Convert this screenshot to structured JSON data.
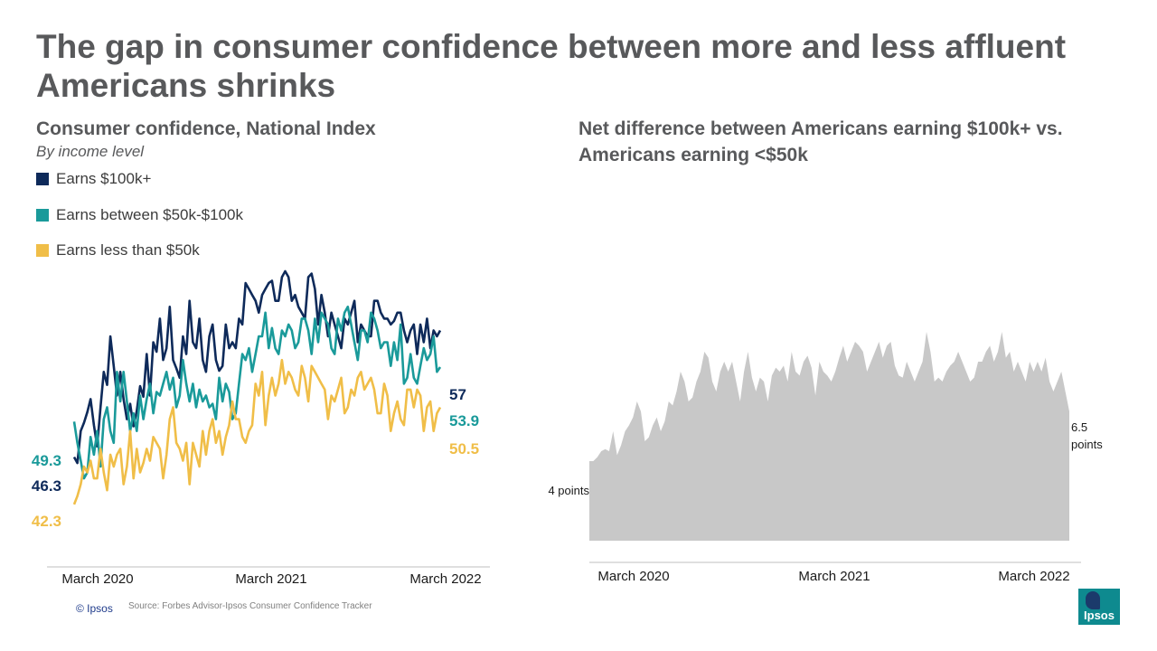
{
  "title": "The gap in consumer confidence between more and less affluent Americans shrinks",
  "left_subtitle": "Consumer confidence, National Index",
  "left_byline": "By income level",
  "right_subtitle": "Net difference between Americans earning $100k+ vs. Americans earning <$50k",
  "footer": {
    "copyright": "© Ipsos",
    "source": "Source: Forbes Advisor-Ipsos Consumer Confidence Tracker"
  },
  "logo_text": "Ipsos",
  "chart_data": [
    {
      "type": "line",
      "title": "Consumer confidence, National Index",
      "subtitle": "By income level",
      "x_labels": [
        "March 2020",
        "March 2021",
        "March 2022"
      ],
      "ylim": [
        40,
        62
      ],
      "grid": false,
      "legend": "top-left",
      "series": [
        {
          "name": "Earns $100k+",
          "color": "#0e2a5a",
          "start_label": "46.3",
          "end_label": "57",
          "values": [
            46.3,
            45.8,
            48.5,
            49.2,
            50.1,
            51.2,
            49.0,
            47.2,
            50.5,
            53.5,
            52.4,
            56.5,
            54.0,
            51.5,
            53.5,
            51.2,
            49.5,
            50.8,
            48.9,
            50.2,
            52.3,
            51.4,
            55.0,
            51.5,
            56.0,
            55.2,
            58.0,
            54.5,
            55.5,
            59.0,
            54.5,
            53.8,
            53.0,
            56.5,
            55.0,
            59.5,
            56.0,
            55.5,
            58.0,
            54.5,
            53.5,
            56.5,
            57.5,
            54.5,
            53.6,
            54.0,
            57.5,
            55.5,
            56.0,
            55.5,
            58.0,
            57.5,
            61.0,
            60.5,
            60.0,
            59.5,
            58.5,
            60.0,
            60.5,
            61.0,
            61.2,
            59.5,
            59.5,
            61.5,
            62.0,
            61.5,
            59.5,
            60.0,
            59.0,
            58.5,
            58.0,
            61.5,
            61.8,
            60.5,
            57.5,
            60.0,
            58.5,
            56.5,
            58.5,
            57.5,
            56.5,
            55.5,
            58.0,
            57.5,
            58.5,
            59.5,
            56.0,
            57.5,
            57.0,
            56.5,
            56.5,
            59.5,
            59.5,
            58.5,
            58.0,
            58.0,
            57.5,
            57.8,
            58.5,
            58.5,
            57.0,
            56.0,
            57.0,
            57.5,
            55.0,
            57.5,
            56.0,
            58.0,
            55.5,
            57.0,
            56.5,
            57.0
          ]
        },
        {
          "name": "Earns between $50k-$100k",
          "color": "#1a9a9a",
          "start_label": "49.3",
          "end_label": "53.9",
          "values": [
            49.3,
            47.5,
            46.0,
            44.5,
            45.0,
            48.0,
            46.5,
            48.5,
            45.5,
            49.5,
            50.5,
            48.5,
            47.5,
            53.5,
            51.0,
            53.5,
            51.0,
            48.5,
            50.0,
            48.5,
            51.5,
            49.5,
            51.2,
            52.5,
            50.0,
            51.8,
            51.5,
            52.5,
            53.5,
            52.0,
            53.0,
            50.5,
            51.5,
            54.5,
            52.5,
            51.0,
            52.5,
            50.5,
            52.0,
            51.0,
            51.5,
            50.5,
            50.8,
            49.5,
            53.0,
            51.0,
            52.5,
            51.8,
            49.5,
            50.0,
            52.5,
            55.0,
            54.5,
            55.5,
            53.5,
            55.0,
            56.5,
            56.5,
            58.5,
            55.5,
            57.2,
            55.5,
            55.0,
            57.0,
            56.5,
            57.5,
            57.0,
            55.5,
            56.0,
            58.0,
            58.0,
            57.0,
            55.0,
            58.0,
            56.0,
            58.5,
            58.0,
            57.5,
            55.5,
            55.0,
            58.0,
            57.0,
            58.5,
            59.0,
            57.5,
            56.0,
            54.5,
            57.0,
            57.0,
            56.0,
            58.5,
            58.0,
            57.0,
            55.5,
            56.0,
            56.0,
            54.0,
            56.0,
            54.5,
            57.5,
            52.5,
            53.0,
            55.0,
            53.0,
            52.5,
            54.0,
            55.5,
            54.5,
            55.0,
            56.5,
            53.5,
            53.9
          ]
        },
        {
          "name": "Earns less than $50k",
          "color": "#f0be48",
          "start_label": "42.3",
          "end_label": "50.5",
          "values": [
            42.3,
            43.0,
            44.0,
            45.5,
            45.0,
            46.0,
            44.5,
            44.5,
            47.0,
            45.0,
            43.5,
            46.5,
            45.5,
            46.5,
            47.0,
            44.0,
            45.5,
            48.5,
            44.5,
            47.0,
            45.0,
            45.8,
            47.0,
            46.0,
            48.0,
            47.5,
            47.0,
            44.5,
            46.5,
            49.5,
            50.5,
            47.5,
            47.0,
            46.0,
            47.5,
            44.0,
            47.5,
            46.5,
            45.5,
            48.5,
            46.5,
            48.5,
            49.5,
            47.5,
            48.5,
            46.5,
            48.0,
            49.0,
            51.0,
            49.5,
            49.5,
            48.0,
            47.5,
            48.5,
            49.0,
            52.5,
            51.5,
            53.5,
            49.0,
            51.5,
            53.0,
            51.5,
            52.5,
            54.5,
            52.5,
            53.5,
            53.0,
            52.0,
            51.5,
            54.0,
            53.0,
            51.0,
            54.0,
            53.5,
            53.0,
            52.5,
            52.0,
            49.5,
            51.5,
            51.0,
            52.0,
            53.0,
            50.0,
            50.5,
            52.0,
            51.5,
            53.0,
            53.5,
            52.0,
            52.5,
            53.0,
            52.0,
            50.0,
            50.0,
            52.5,
            51.5,
            48.5,
            50.0,
            51.0,
            49.5,
            49.0,
            52.0,
            52.0,
            50.5,
            52.0,
            51.5,
            48.5,
            50.5,
            51.0,
            48.5,
            50.0,
            50.5
          ]
        }
      ]
    },
    {
      "type": "area",
      "title": "Net difference between Americans earning $100k+ vs. Americans earning <$50k",
      "x_labels": [
        "March 2020",
        "March 2021",
        "March 2022"
      ],
      "ylim": [
        0,
        12
      ],
      "color": "#c8c8c8",
      "start_label": "4 points",
      "end_label": "6.5 points",
      "values": [
        4.0,
        4.0,
        4.2,
        4.5,
        4.6,
        4.5,
        5.5,
        4.3,
        4.8,
        5.5,
        5.8,
        6.2,
        7.0,
        6.5,
        5.0,
        5.2,
        5.8,
        6.2,
        5.5,
        6.0,
        7.0,
        6.8,
        7.5,
        8.5,
        8.0,
        7.0,
        7.2,
        8.0,
        8.5,
        9.5,
        9.2,
        8.0,
        7.5,
        8.5,
        9.0,
        8.5,
        9.0,
        8.0,
        7.0,
        8.5,
        9.5,
        8.2,
        7.5,
        8.2,
        8.0,
        7.0,
        8.3,
        8.7,
        8.5,
        8.8,
        8.0,
        9.5,
        8.5,
        8.3,
        9.0,
        9.3,
        8.7,
        7.3,
        9.0,
        8.5,
        8.3,
        8.0,
        8.5,
        9.2,
        9.8,
        9.0,
        9.5,
        10.0,
        9.8,
        9.5,
        8.5,
        9.0,
        9.5,
        10.0,
        9.2,
        9.8,
        10.0,
        8.8,
        8.3,
        8.2,
        9.0,
        8.5,
        8.0,
        8.5,
        9.0,
        10.5,
        9.5,
        8.0,
        8.2,
        8.0,
        8.5,
        8.8,
        9.0,
        9.5,
        9.0,
        8.5,
        8.0,
        8.2,
        9.0,
        9.0,
        9.5,
        9.8,
        9.0,
        9.5,
        10.5,
        9.2,
        9.5,
        8.5,
        9.0,
        8.5,
        8.0,
        9.0,
        8.5,
        9.0,
        8.5,
        9.2,
        8.0,
        7.5,
        8.0,
        8.5,
        7.5,
        6.5
      ]
    }
  ]
}
